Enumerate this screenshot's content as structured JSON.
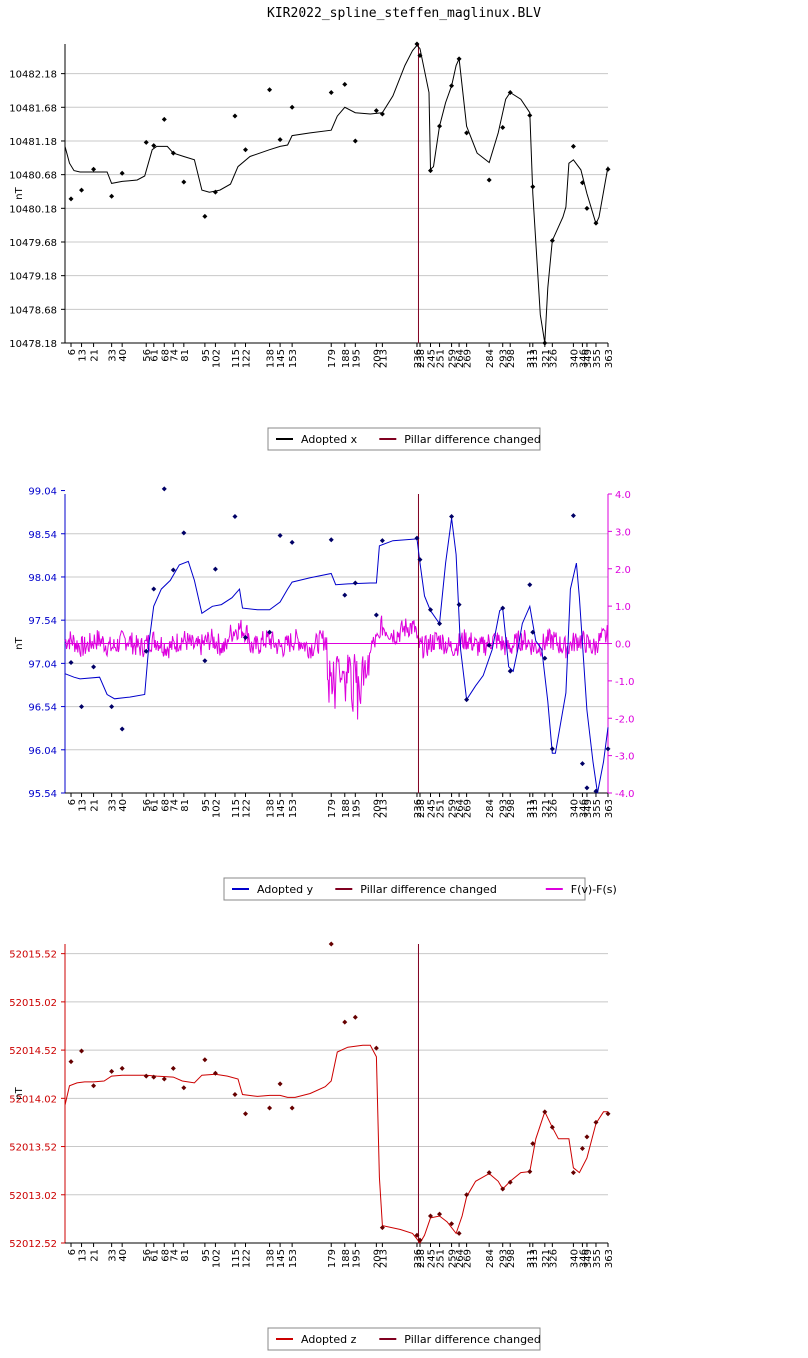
{
  "title": "KIR2022_spline_steffen_maglinux.BLV",
  "x_ticks": [
    6,
    13,
    21,
    33,
    40,
    56,
    61,
    68,
    74,
    81,
    95,
    102,
    115,
    122,
    138,
    145,
    153,
    179,
    188,
    195,
    209,
    213,
    236,
    238,
    245,
    251,
    259,
    264,
    269,
    284,
    293,
    298,
    311,
    313,
    321,
    326,
    340,
    346,
    349,
    355,
    363
  ],
  "pillar_change_x": 237,
  "colors": {
    "x": "#000000",
    "y": "#0000cc",
    "z": "#cc0000",
    "pillar": "#800020",
    "fdiff": "#dd00dd",
    "grid": "#c8c8c8"
  },
  "chart_data": [
    {
      "type": "line",
      "ylabel": "nT",
      "y_ticks": [
        "10482.18",
        "10481.68",
        "10481.18",
        "10480.68",
        "10480.18",
        "10479.68",
        "10479.18",
        "10478.68",
        "10478.18"
      ],
      "ylim": [
        10478.18,
        10482.62
      ],
      "legend": [
        "Adopted x",
        "Pillar difference changed"
      ],
      "line": [
        [
          2,
          10481.1
        ],
        [
          5,
          10480.85
        ],
        [
          8,
          10480.74
        ],
        [
          12,
          10480.72
        ],
        [
          21,
          10480.72
        ],
        [
          30,
          10480.72
        ],
        [
          33,
          10480.55
        ],
        [
          40,
          10480.58
        ],
        [
          50,
          10480.6
        ],
        [
          55,
          10480.66
        ],
        [
          60,
          10481.05
        ],
        [
          63,
          10481.1
        ],
        [
          70,
          10481.1
        ],
        [
          74,
          10481.0
        ],
        [
          81,
          10480.95
        ],
        [
          88,
          10480.9
        ],
        [
          93,
          10480.45
        ],
        [
          98,
          10480.42
        ],
        [
          105,
          10480.45
        ],
        [
          112,
          10480.54
        ],
        [
          117,
          10480.8
        ],
        [
          125,
          10480.95
        ],
        [
          138,
          10481.05
        ],
        [
          145,
          10481.1
        ],
        [
          150,
          10481.12
        ],
        [
          153,
          10481.26
        ],
        [
          165,
          10481.3
        ],
        [
          179,
          10481.34
        ],
        [
          183,
          10481.55
        ],
        [
          188,
          10481.68
        ],
        [
          195,
          10481.6
        ],
        [
          205,
          10481.58
        ],
        [
          213,
          10481.6
        ],
        [
          220,
          10481.85
        ],
        [
          228,
          10482.3
        ],
        [
          233,
          10482.52
        ],
        [
          236,
          10482.6
        ],
        [
          238,
          10482.55
        ],
        [
          244,
          10481.9
        ],
        [
          245,
          10480.76
        ],
        [
          247,
          10480.8
        ],
        [
          251,
          10481.4
        ],
        [
          255,
          10481.75
        ],
        [
          259,
          10482.0
        ],
        [
          262,
          10482.3
        ],
        [
          264,
          10482.4
        ],
        [
          269,
          10481.4
        ],
        [
          276,
          10481.0
        ],
        [
          284,
          10480.86
        ],
        [
          290,
          10481.3
        ],
        [
          295,
          10481.8
        ],
        [
          298,
          10481.9
        ],
        [
          305,
          10481.8
        ],
        [
          311,
          10481.6
        ],
        [
          313,
          10480.4
        ],
        [
          318,
          10478.6
        ],
        [
          321,
          10478.18
        ],
        [
          323,
          10479.0
        ],
        [
          326,
          10479.7
        ],
        [
          333,
          10480.05
        ],
        [
          335,
          10480.2
        ],
        [
          337,
          10480.85
        ],
        [
          340,
          10480.9
        ],
        [
          345,
          10480.75
        ],
        [
          349,
          10480.4
        ],
        [
          355,
          10479.95
        ],
        [
          357,
          10480.05
        ],
        [
          363,
          10480.8
        ]
      ],
      "points": [
        [
          6,
          10480.32
        ],
        [
          13,
          10480.45
        ],
        [
          21,
          10480.76
        ],
        [
          33,
          10480.36
        ],
        [
          40,
          10480.7
        ],
        [
          56,
          10481.16
        ],
        [
          61,
          10481.11
        ],
        [
          68,
          10481.5
        ],
        [
          74,
          10481.0
        ],
        [
          81,
          10480.57
        ],
        [
          95,
          10480.06
        ],
        [
          102,
          10480.42
        ],
        [
          115,
          10481.55
        ],
        [
          122,
          10481.05
        ],
        [
          138,
          10481.94
        ],
        [
          145,
          10481.2
        ],
        [
          153,
          10481.68
        ],
        [
          179,
          10481.9
        ],
        [
          188,
          10482.02
        ],
        [
          195,
          10481.18
        ],
        [
          209,
          10481.63
        ],
        [
          213,
          10481.58
        ],
        [
          236,
          10482.62
        ],
        [
          238,
          10482.45
        ],
        [
          245,
          10480.74
        ],
        [
          251,
          10481.4
        ],
        [
          259,
          10482.0
        ],
        [
          264,
          10482.4
        ],
        [
          269,
          10481.3
        ],
        [
          284,
          10480.6
        ],
        [
          293,
          10481.38
        ],
        [
          298,
          10481.9
        ],
        [
          311,
          10481.56
        ],
        [
          313,
          10480.5
        ],
        [
          321,
          10478.18
        ],
        [
          326,
          10479.7
        ],
        [
          340,
          10481.1
        ],
        [
          346,
          10480.56
        ],
        [
          349,
          10480.18
        ],
        [
          355,
          10479.96
        ],
        [
          363,
          10480.76
        ]
      ]
    },
    {
      "type": "line",
      "ylabel": "nT",
      "y_ticks": [
        "99.04",
        "98.54",
        "98.04",
        "97.54",
        "97.04",
        "96.54",
        "96.04",
        "95.54"
      ],
      "ylim": [
        95.54,
        99.0
      ],
      "y2_ticks": [
        "4.0",
        "3.0",
        "2.0",
        "1.0",
        "0.0",
        "-1.0",
        "-2.0",
        "-3.0",
        "-4.0"
      ],
      "y2lim": [
        -4.0,
        4.0
      ],
      "legend": [
        "Adopted y",
        "Pillar difference changed",
        "F(v)-F(s)"
      ],
      "line": [
        [
          2,
          96.92
        ],
        [
          8,
          96.88
        ],
        [
          12,
          96.86
        ],
        [
          25,
          96.88
        ],
        [
          30,
          96.68
        ],
        [
          35,
          96.63
        ],
        [
          45,
          96.65
        ],
        [
          55,
          96.68
        ],
        [
          58,
          97.3
        ],
        [
          61,
          97.7
        ],
        [
          66,
          97.9
        ],
        [
          72,
          98.0
        ],
        [
          78,
          98.18
        ],
        [
          84,
          98.22
        ],
        [
          88,
          98.0
        ],
        [
          93,
          97.62
        ],
        [
          100,
          97.7
        ],
        [
          106,
          97.72
        ],
        [
          113,
          97.8
        ],
        [
          118,
          97.9
        ],
        [
          120,
          97.68
        ],
        [
          130,
          97.66
        ],
        [
          138,
          97.66
        ],
        [
          145,
          97.75
        ],
        [
          150,
          97.9
        ],
        [
          153,
          97.98
        ],
        [
          165,
          98.03
        ],
        [
          179,
          98.08
        ],
        [
          182,
          97.95
        ],
        [
          190,
          97.96
        ],
        [
          205,
          97.97
        ],
        [
          209,
          97.97
        ],
        [
          211,
          98.4
        ],
        [
          220,
          98.46
        ],
        [
          236,
          98.48
        ],
        [
          238,
          98.2
        ],
        [
          241,
          97.82
        ],
        [
          245,
          97.65
        ],
        [
          251,
          97.5
        ],
        [
          255,
          98.2
        ],
        [
          259,
          98.72
        ],
        [
          262,
          98.3
        ],
        [
          265,
          97.2
        ],
        [
          269,
          96.62
        ],
        [
          275,
          96.78
        ],
        [
          280,
          96.9
        ],
        [
          286,
          97.2
        ],
        [
          291,
          97.65
        ],
        [
          293,
          97.68
        ],
        [
          297,
          97.0
        ],
        [
          300,
          96.95
        ],
        [
          303,
          97.2
        ],
        [
          306,
          97.5
        ],
        [
          311,
          97.7
        ],
        [
          315,
          97.3
        ],
        [
          319,
          97.2
        ],
        [
          323,
          96.6
        ],
        [
          326,
          96.0
        ],
        [
          328,
          96.0
        ],
        [
          335,
          96.7
        ],
        [
          338,
          97.9
        ],
        [
          342,
          98.2
        ],
        [
          344,
          97.8
        ],
        [
          349,
          96.5
        ],
        [
          353,
          95.9
        ],
        [
          356,
          95.54
        ],
        [
          360,
          95.9
        ],
        [
          363,
          96.3
        ]
      ],
      "points": [
        [
          6,
          97.05
        ],
        [
          13,
          96.54
        ],
        [
          21,
          97.0
        ],
        [
          33,
          96.54
        ],
        [
          40,
          96.28
        ],
        [
          56,
          97.18
        ],
        [
          61,
          97.9
        ],
        [
          68,
          99.06
        ],
        [
          74,
          98.12
        ],
        [
          81,
          98.55
        ],
        [
          95,
          97.07
        ],
        [
          102,
          98.13
        ],
        [
          115,
          98.74
        ],
        [
          122,
          97.34
        ],
        [
          138,
          97.4
        ],
        [
          145,
          98.52
        ],
        [
          153,
          98.44
        ],
        [
          179,
          98.47
        ],
        [
          188,
          97.83
        ],
        [
          195,
          97.97
        ],
        [
          209,
          97.6
        ],
        [
          213,
          98.46
        ],
        [
          236,
          98.49
        ],
        [
          238,
          98.24
        ],
        [
          245,
          97.66
        ],
        [
          251,
          97.5
        ],
        [
          259,
          98.74
        ],
        [
          264,
          97.72
        ],
        [
          269,
          96.62
        ],
        [
          284,
          97.25
        ],
        [
          293,
          97.68
        ],
        [
          298,
          96.95
        ],
        [
          311,
          97.95
        ],
        [
          313,
          97.4
        ],
        [
          321,
          97.1
        ],
        [
          326,
          96.05
        ],
        [
          340,
          98.75
        ],
        [
          346,
          95.88
        ],
        [
          349,
          95.6
        ],
        [
          355,
          95.56
        ],
        [
          363,
          96.05
        ]
      ]
    },
    {
      "type": "line",
      "ylabel": "nT",
      "y_ticks": [
        "52015.52",
        "52015.02",
        "52014.52",
        "52014.02",
        "52013.52",
        "52013.02",
        "52012.52"
      ],
      "ylim": [
        52012.52,
        52015.62
      ],
      "legend": [
        "Adopted z",
        "Pillar difference changed"
      ],
      "line": [
        [
          2,
          52013.95
        ],
        [
          5,
          52014.15
        ],
        [
          10,
          52014.18
        ],
        [
          15,
          52014.19
        ],
        [
          21,
          52014.19
        ],
        [
          28,
          52014.2
        ],
        [
          33,
          52014.25
        ],
        [
          40,
          52014.26
        ],
        [
          56,
          52014.26
        ],
        [
          63,
          52014.25
        ],
        [
          74,
          52014.24
        ],
        [
          80,
          52014.2
        ],
        [
          88,
          52014.18
        ],
        [
          93,
          52014.26
        ],
        [
          102,
          52014.27
        ],
        [
          110,
          52014.25
        ],
        [
          117,
          52014.22
        ],
        [
          120,
          52014.06
        ],
        [
          130,
          52014.04
        ],
        [
          138,
          52014.05
        ],
        [
          145,
          52014.05
        ],
        [
          150,
          52014.03
        ],
        [
          155,
          52014.03
        ],
        [
          165,
          52014.07
        ],
        [
          175,
          52014.14
        ],
        [
          179,
          52014.2
        ],
        [
          183,
          52014.5
        ],
        [
          190,
          52014.55
        ],
        [
          200,
          52014.57
        ],
        [
          205,
          52014.57
        ],
        [
          209,
          52014.45
        ],
        [
          211,
          52013.2
        ],
        [
          213,
          52012.7
        ],
        [
          225,
          52012.66
        ],
        [
          233,
          52012.62
        ],
        [
          236,
          52012.56
        ],
        [
          238,
          52012.52
        ],
        [
          241,
          52012.6
        ],
        [
          245,
          52012.78
        ],
        [
          251,
          52012.8
        ],
        [
          256,
          52012.74
        ],
        [
          262,
          52012.62
        ],
        [
          266,
          52012.8
        ],
        [
          269,
          52013.0
        ],
        [
          275,
          52013.16
        ],
        [
          284,
          52013.24
        ],
        [
          290,
          52013.16
        ],
        [
          293,
          52013.08
        ],
        [
          298,
          52013.16
        ],
        [
          305,
          52013.25
        ],
        [
          311,
          52013.26
        ],
        [
          315,
          52013.6
        ],
        [
          321,
          52013.88
        ],
        [
          326,
          52013.72
        ],
        [
          330,
          52013.6
        ],
        [
          337,
          52013.6
        ],
        [
          340,
          52013.3
        ],
        [
          344,
          52013.25
        ],
        [
          349,
          52013.4
        ],
        [
          355,
          52013.76
        ],
        [
          360,
          52013.88
        ],
        [
          363,
          52013.88
        ]
      ],
      "points": [
        [
          6,
          52014.4
        ],
        [
          13,
          52014.51
        ],
        [
          21,
          52014.15
        ],
        [
          33,
          52014.3
        ],
        [
          40,
          52014.33
        ],
        [
          56,
          52014.25
        ],
        [
          61,
          52014.24
        ],
        [
          68,
          52014.22
        ],
        [
          74,
          52014.33
        ],
        [
          81,
          52014.13
        ],
        [
          95,
          52014.42
        ],
        [
          102,
          52014.28
        ],
        [
          115,
          52014.06
        ],
        [
          122,
          52013.86
        ],
        [
          138,
          52013.92
        ],
        [
          145,
          52014.17
        ],
        [
          153,
          52013.92
        ],
        [
          179,
          52015.62
        ],
        [
          188,
          52014.81
        ],
        [
          195,
          52014.86
        ],
        [
          209,
          52014.54
        ],
        [
          213,
          52012.68
        ],
        [
          236,
          52012.6
        ],
        [
          238,
          52012.55
        ],
        [
          245,
          52012.8
        ],
        [
          251,
          52012.82
        ],
        [
          259,
          52012.72
        ],
        [
          264,
          52012.62
        ],
        [
          269,
          52013.02
        ],
        [
          284,
          52013.25
        ],
        [
          293,
          52013.08
        ],
        [
          298,
          52013.15
        ],
        [
          311,
          52013.26
        ],
        [
          313,
          52013.55
        ],
        [
          321,
          52013.88
        ],
        [
          326,
          52013.72
        ],
        [
          340,
          52013.25
        ],
        [
          346,
          52013.5
        ],
        [
          349,
          52013.62
        ],
        [
          355,
          52013.77
        ],
        [
          363,
          52013.86
        ]
      ]
    }
  ]
}
